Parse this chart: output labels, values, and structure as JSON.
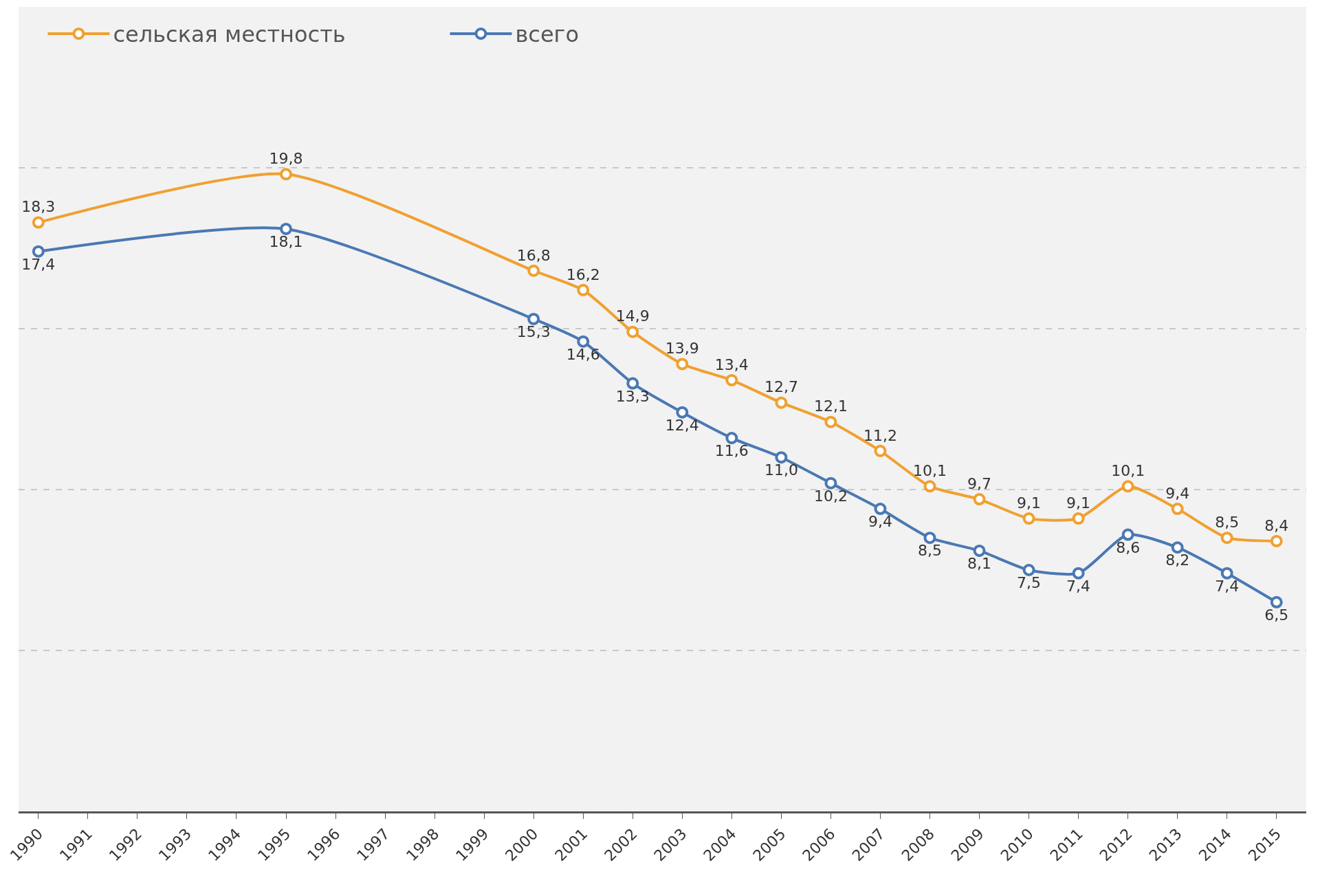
{
  "chart_data": {
    "type": "line",
    "x": [
      1990,
      1995,
      2000,
      2001,
      2002,
      2003,
      2004,
      2005,
      2006,
      2007,
      2008,
      2009,
      2010,
      2011,
      2012,
      2013,
      2014,
      2015
    ],
    "series": [
      {
        "name": "сельская местность",
        "color": "#f0a030",
        "values": [
          18.3,
          19.8,
          16.8,
          16.2,
          14.9,
          13.9,
          13.4,
          12.7,
          12.1,
          11.2,
          10.1,
          9.7,
          9.1,
          9.1,
          10.1,
          9.4,
          8.5,
          8.4
        ],
        "value_labels": [
          "18,3",
          "19,8",
          "16,8",
          "16,2",
          "14,9",
          "13,9",
          "13,4",
          "12,7",
          "12,1",
          "11,2",
          "10,1",
          "9,7",
          "9,1",
          "9,1",
          "10,1",
          "9,4",
          "8,5",
          "8,4"
        ]
      },
      {
        "name": "всего",
        "color": "#4a78b4",
        "values": [
          17.4,
          18.1,
          15.3,
          14.6,
          13.3,
          12.4,
          11.6,
          11.0,
          10.2,
          9.4,
          8.5,
          8.1,
          7.5,
          7.4,
          8.6,
          8.2,
          7.4,
          6.5
        ],
        "value_labels": [
          "17,4",
          "18,1",
          "15,3",
          "14,6",
          "13,3",
          "12,4",
          "11,6",
          "11,0",
          "10,2",
          "9,4",
          "8,5",
          "8,1",
          "7,5",
          "7,4",
          "8,6",
          "8,2",
          "7,4",
          "6,5"
        ]
      }
    ],
    "xlim": [
      1989.6,
      2015.6
    ],
    "xticks": [
      1990,
      1991,
      1992,
      1993,
      1994,
      1995,
      1996,
      1997,
      1998,
      1999,
      2000,
      2001,
      2002,
      2003,
      2004,
      2005,
      2006,
      2007,
      2008,
      2009,
      2010,
      2011,
      2012,
      2013,
      2014,
      2015
    ],
    "ylim": [
      0,
      25
    ],
    "yticks": [
      {
        "value": 0,
        "label": null
      },
      {
        "value": 5,
        "label": null
      },
      {
        "value": 10,
        "label": null
      },
      {
        "value": 15,
        "label": null
      },
      {
        "value": 20,
        "label": null
      },
      {
        "value": 25,
        "label": null
      }
    ],
    "tick_labels": "x",
    "grid": "y",
    "legend": "top left",
    "marker": "circle",
    "line_style": "solid"
  }
}
